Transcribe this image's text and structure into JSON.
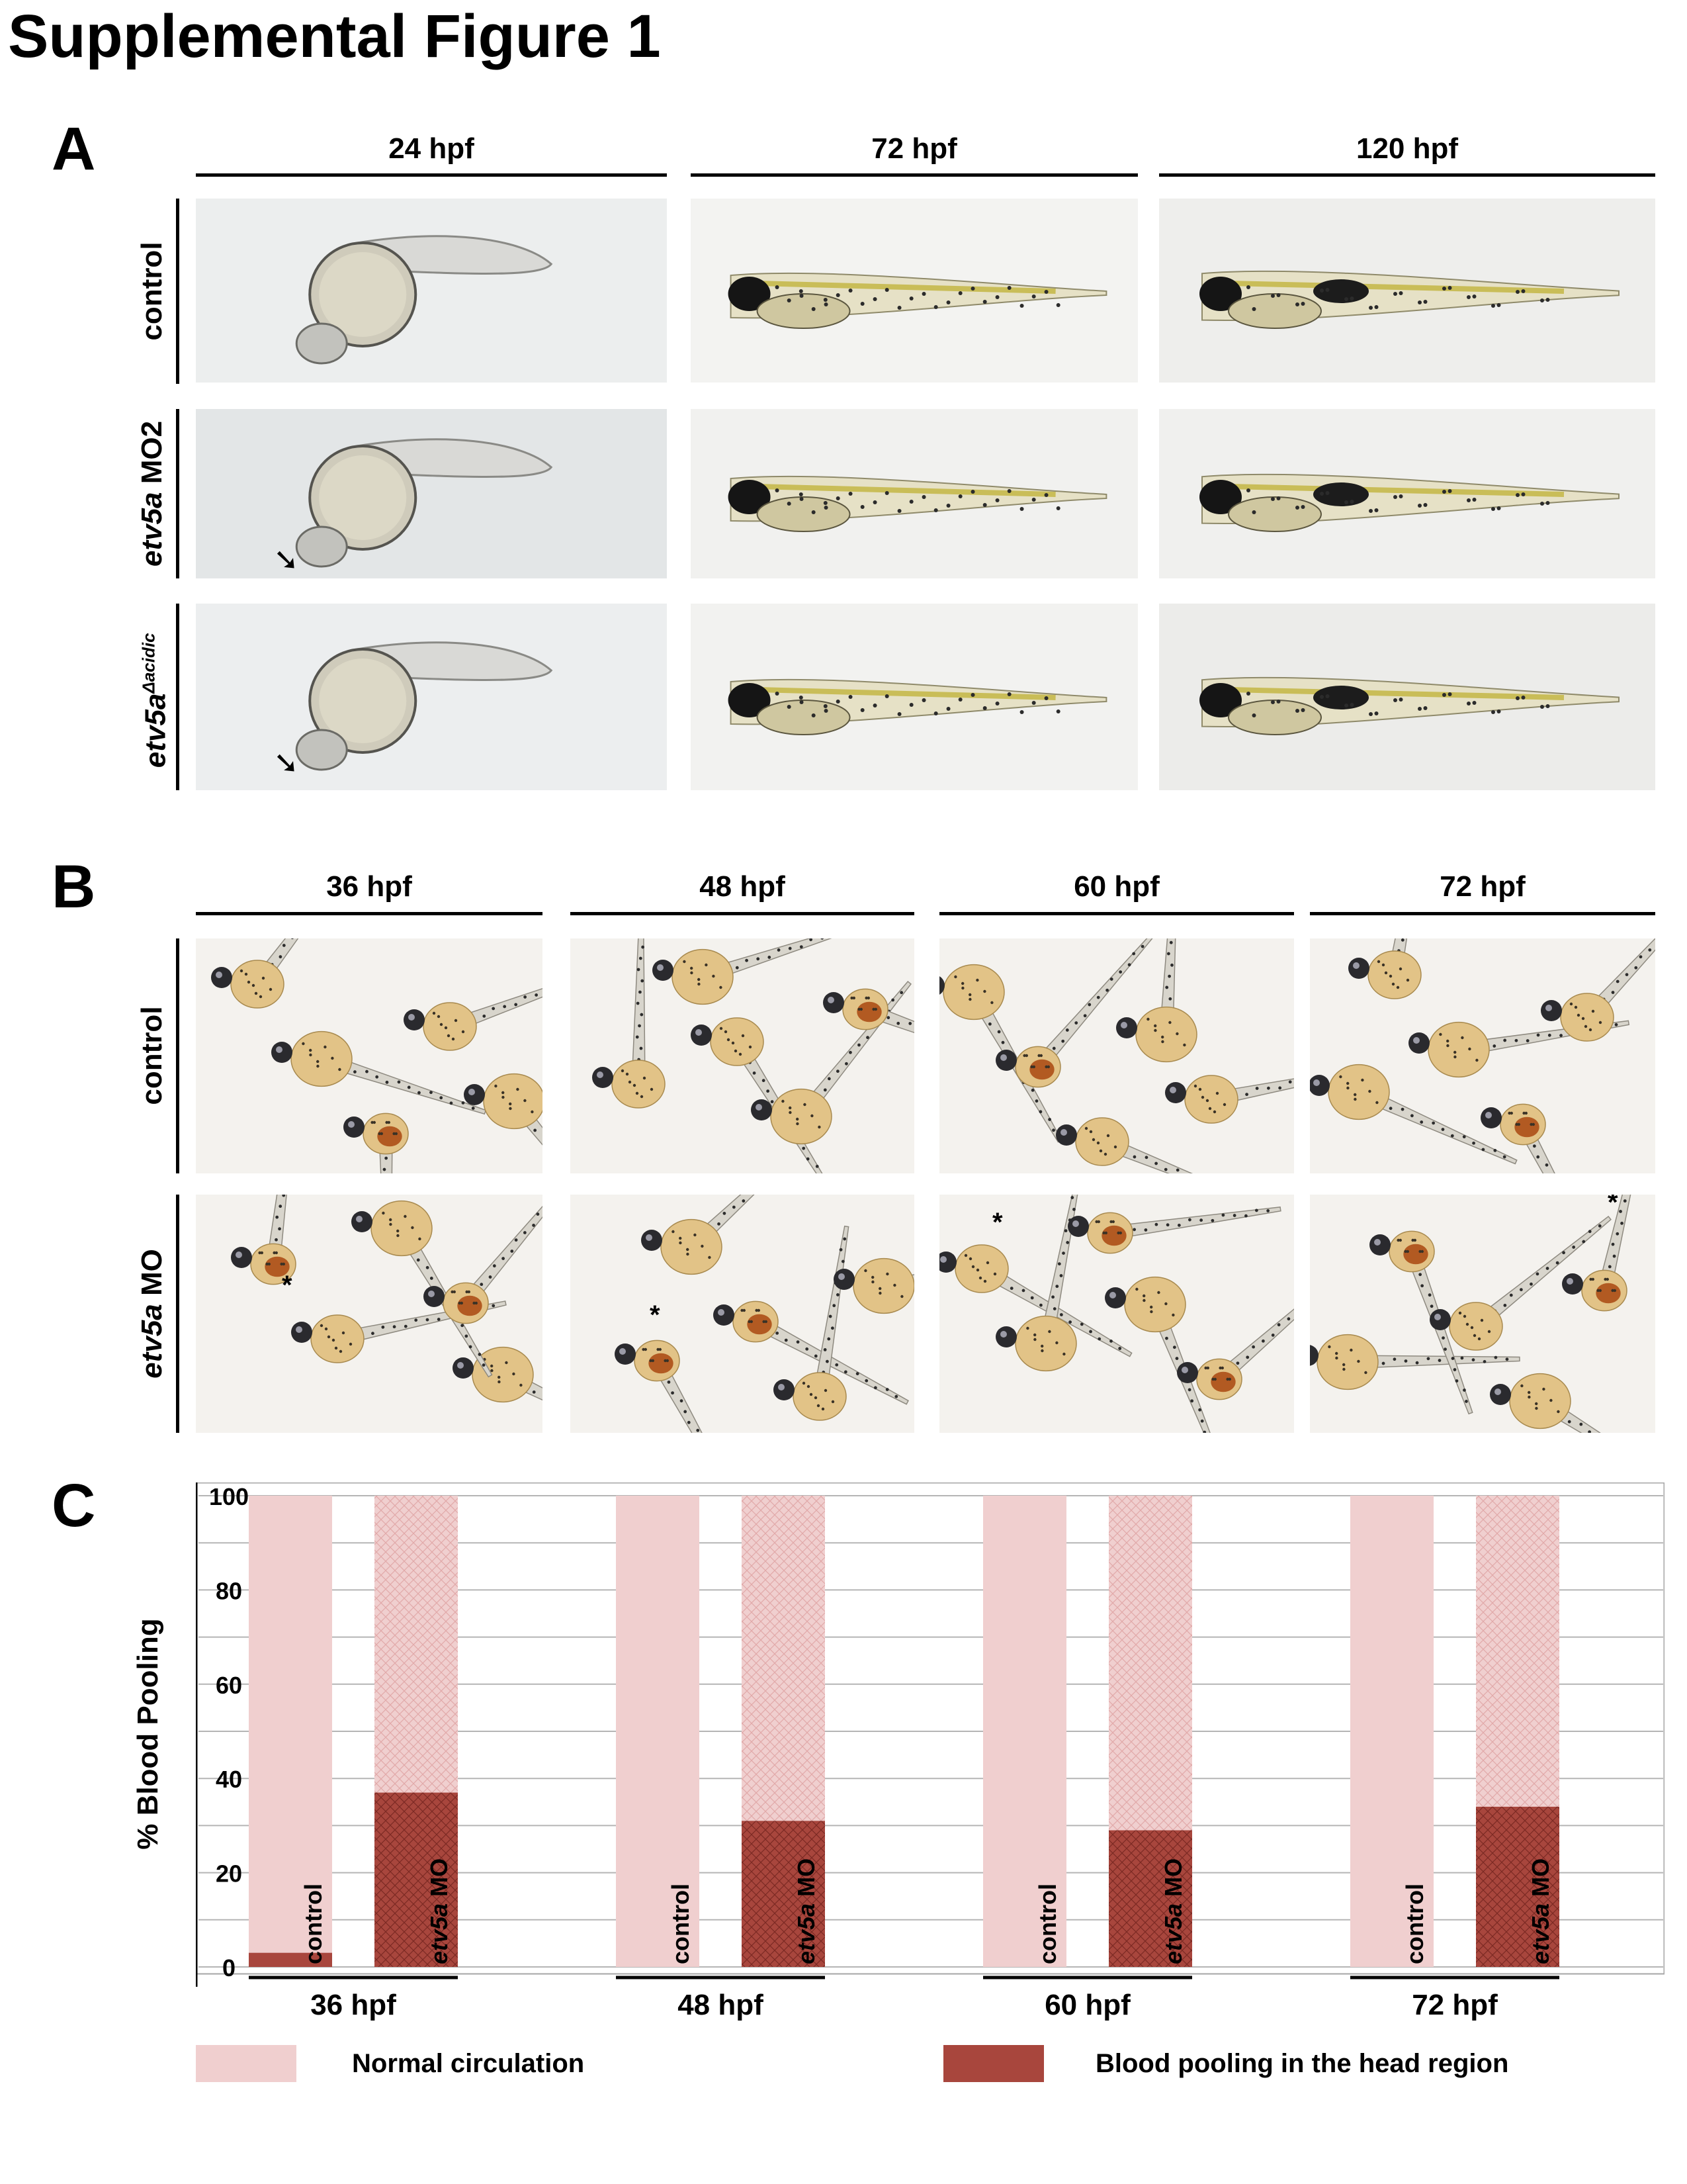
{
  "figure_title": "Supplemental Figure 1",
  "panel_a": {
    "letter": "A",
    "columns": [
      "24 hpf",
      "72 hpf",
      "120 hpf"
    ],
    "rows": [
      {
        "label_main": "control",
        "label_suffix": "",
        "label_sup": "",
        "arrow": false
      },
      {
        "label_main": "etv5a",
        "label_suffix": " MO2",
        "label_sup": "",
        "arrow": true
      },
      {
        "label_main": "etv5a",
        "label_suffix": "",
        "label_sup": "Δacidic",
        "arrow": true
      }
    ],
    "arrow_glyph": "➘"
  },
  "panel_b": {
    "letter": "B",
    "columns": [
      "36 hpf",
      "48 hpf",
      "60 hpf",
      "72 hpf"
    ],
    "rows": [
      {
        "label_main": "control",
        "label_suffix": ""
      },
      {
        "label_main": "etv5a",
        "label_suffix": " MO"
      }
    ],
    "asterisk": "*"
  },
  "panel_c": {
    "letter": "C",
    "chart_data": {
      "type": "bar",
      "stacked": true,
      "ylabel": "% Blood Pooling",
      "ylim": [
        0,
        100
      ],
      "yticks": [
        0,
        20,
        40,
        60,
        80,
        100
      ],
      "grid": true,
      "groups": [
        "36 hpf",
        "48 hpf",
        "60 hpf",
        "72 hpf"
      ],
      "bar_labels": [
        {
          "main": "control",
          "suffix": ""
        },
        {
          "main": "etv5a",
          "suffix": " MO"
        }
      ],
      "series": [
        {
          "name": "Blood pooling in the head region",
          "color": "#a8463d",
          "values": [
            [
              3,
              37
            ],
            [
              0,
              31
            ],
            [
              0,
              29
            ],
            [
              0,
              34
            ]
          ]
        },
        {
          "name": "Normal circulation",
          "color": "#f0cfcf",
          "values": [
            [
              97,
              63
            ],
            [
              100,
              69
            ],
            [
              100,
              71
            ],
            [
              100,
              66
            ]
          ]
        }
      ],
      "legend": [
        {
          "label": "Normal circulation",
          "color": "#f0cfcf"
        },
        {
          "label": "Blood pooling in the head region",
          "color": "#a8463d"
        }
      ],
      "legend_position": "bottom"
    }
  }
}
